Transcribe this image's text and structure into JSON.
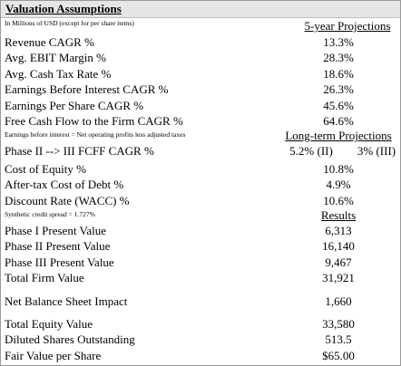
{
  "title": "Valuation Assumptions",
  "units_note": "In Millions of USD (except for per share items)",
  "projections_header": "5-year Projections",
  "projections": [
    {
      "label": "Revenue CAGR %",
      "value": "13.3%"
    },
    {
      "label": "Avg. EBIT Margin %",
      "value": "28.3%"
    },
    {
      "label": "Avg. Cash Tax Rate %",
      "value": "18.6%"
    },
    {
      "label": "Earnings Before Interest CAGR %",
      "value": "26.3%"
    },
    {
      "label": "Earnings Per Share CAGR %",
      "value": "45.6%"
    },
    {
      "label": "Free Cash Flow to the Firm CAGR %",
      "value": "64.6%"
    }
  ],
  "ebi_note": "Earnings before interest = Net operating profits less adjusted taxes",
  "long_term_header": "Long-term Projections",
  "phase_growth": {
    "label": "Phase II --> III FCFF CAGR %",
    "phase2": "5.2% (II)",
    "phase3": "3% (III)"
  },
  "long_term": [
    {
      "label": "Cost of Equity %",
      "value": "10.8%"
    },
    {
      "label": "After-tax Cost of Debt %",
      "value": "4.9%"
    },
    {
      "label": "Discount Rate (WACC) %",
      "value": "10.6%"
    }
  ],
  "credit_note": "Synthetic credit spread = 1.727%",
  "results_header": "Results",
  "results": [
    {
      "label": "Phase I Present Value",
      "value": "6,313"
    },
    {
      "label": "Phase II Present Value",
      "value": "16,140"
    },
    {
      "label": "Phase III Present Value",
      "value": "9,467"
    },
    {
      "label": "Total Firm Value",
      "value": "31,921"
    },
    {
      "label": "Net Balance Sheet Impact",
      "value": "1,660"
    },
    {
      "label": "Total Equity Value",
      "value": "33,580"
    },
    {
      "label": "Diluted Shares Outstanding",
      "value": "513.5"
    },
    {
      "label": "Fair Value per Share",
      "value": "$65.00"
    }
  ]
}
